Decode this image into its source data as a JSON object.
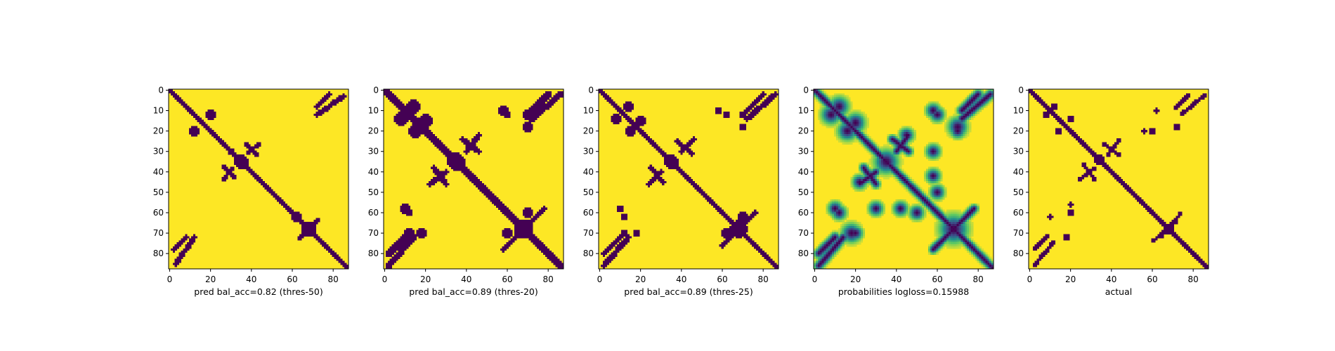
{
  "chart_data": [
    {
      "type": "heatmap",
      "xlabel": "pred bal_acc=0.82 (thres-50)",
      "ticks": [
        0,
        10,
        20,
        30,
        40,
        50,
        60,
        70,
        80
      ],
      "xticks": [
        0,
        20,
        40,
        60,
        80
      ],
      "size": 88,
      "colormap": "viridis",
      "variant": "binary",
      "diagonal_halfwidth": 2,
      "blobs": [
        {
          "i": 20,
          "j": 12,
          "r": 3
        },
        {
          "i": 35,
          "j": 35,
          "r": 4
        },
        {
          "i": 30,
          "j": 30,
          "r": 2
        },
        {
          "i": 68,
          "j": 68,
          "r": 4
        },
        {
          "i": 62,
          "j": 62,
          "r": 3
        }
      ],
      "bands": [
        {
          "i0": 2,
          "j0": 78,
          "i1": 8,
          "j1": 72,
          "w": 1.5
        },
        {
          "i0": 85,
          "j0": 3,
          "i1": 72,
          "j1": 12,
          "w": 1.5
        },
        {
          "i0": 38,
          "j0": 31,
          "i1": 44,
          "j1": 26,
          "w": 1.2
        },
        {
          "i0": 26,
          "j0": 37,
          "i1": 32,
          "j1": 43,
          "w": 1.2
        },
        {
          "i0": 63,
          "j0": 73,
          "i1": 72,
          "j1": 64,
          "w": 1.2
        }
      ]
    },
    {
      "type": "heatmap",
      "xlabel": "pred bal_acc=0.89 (thres-20)",
      "ticks": [
        0,
        10,
        20,
        30,
        40,
        50,
        60,
        70,
        80
      ],
      "xticks": [
        0,
        20,
        40,
        60,
        80
      ],
      "size": 88,
      "colormap": "viridis",
      "variant": "binary",
      "diagonal_halfwidth": 2.5,
      "blobs": [
        {
          "i": 14,
          "j": 8,
          "r": 4
        },
        {
          "i": 20,
          "j": 15,
          "r": 4
        },
        {
          "i": 35,
          "j": 35,
          "r": 5
        },
        {
          "i": 68,
          "j": 68,
          "r": 6
        },
        {
          "i": 60,
          "j": 70,
          "r": 3
        },
        {
          "i": 60,
          "j": 12,
          "r": 2
        },
        {
          "i": 70,
          "j": 12,
          "r": 3
        },
        {
          "i": 10,
          "j": 58,
          "r": 3
        },
        {
          "i": 18,
          "j": 70,
          "r": 3
        }
      ],
      "bands": [
        {
          "i0": 2,
          "j0": 80,
          "i1": 10,
          "j1": 72,
          "w": 1.8
        },
        {
          "i0": 86,
          "j0": 2,
          "i1": 72,
          "j1": 14,
          "w": 1.8
        },
        {
          "i0": 40,
          "j0": 30,
          "i1": 46,
          "j1": 22,
          "w": 1.5
        },
        {
          "i0": 24,
          "j0": 38,
          "i1": 30,
          "j1": 46,
          "w": 1.5
        },
        {
          "i0": 58,
          "j0": 78,
          "i1": 74,
          "j1": 62,
          "w": 1.5
        }
      ]
    },
    {
      "type": "heatmap",
      "xlabel": "pred bal_acc=0.89 (thres-25)",
      "ticks": [
        0,
        10,
        20,
        30,
        40,
        50,
        60,
        70,
        80
      ],
      "xticks": [
        0,
        20,
        40,
        60,
        80
      ],
      "size": 88,
      "colormap": "viridis",
      "variant": "binary",
      "diagonal_halfwidth": 2.3,
      "blobs": [
        {
          "i": 14,
          "j": 8,
          "r": 3
        },
        {
          "i": 20,
          "j": 15,
          "r": 3
        },
        {
          "i": 35,
          "j": 35,
          "r": 4
        },
        {
          "i": 68,
          "j": 68,
          "r": 5
        },
        {
          "i": 62,
          "j": 70,
          "r": 3
        },
        {
          "i": 62,
          "j": 12,
          "r": 2
        },
        {
          "i": 70,
          "j": 12,
          "r": 2
        },
        {
          "i": 10,
          "j": 58,
          "r": 2
        },
        {
          "i": 18,
          "j": 70,
          "r": 2
        }
      ],
      "bands": [
        {
          "i0": 2,
          "j0": 80,
          "i1": 10,
          "j1": 72,
          "w": 1.6
        },
        {
          "i0": 86,
          "j0": 2,
          "i1": 72,
          "j1": 14,
          "w": 1.6
        },
        {
          "i0": 40,
          "j0": 30,
          "i1": 46,
          "j1": 24,
          "w": 1.3
        },
        {
          "i0": 25,
          "j0": 38,
          "i1": 31,
          "j1": 45,
          "w": 1.3
        },
        {
          "i0": 60,
          "j0": 76,
          "i1": 73,
          "j1": 63,
          "w": 1.3
        }
      ]
    },
    {
      "type": "heatmap",
      "xlabel": "probabilities logloss=0.15988",
      "ticks": [
        0,
        10,
        20,
        30,
        40,
        50,
        60,
        70,
        80
      ],
      "xticks": [
        0,
        20,
        40,
        60,
        80
      ],
      "size": 88,
      "colormap": "viridis",
      "variant": "probability",
      "diagonal_halfwidth": 2.5,
      "blobs": [
        {
          "i": 12,
          "j": 8,
          "r": 4
        },
        {
          "i": 20,
          "j": 16,
          "r": 4
        },
        {
          "i": 35,
          "j": 35,
          "r": 5
        },
        {
          "i": 68,
          "j": 68,
          "r": 6
        },
        {
          "i": 60,
          "j": 12,
          "r": 3
        },
        {
          "i": 70,
          "j": 18,
          "r": 4
        },
        {
          "i": 10,
          "j": 58,
          "r": 3
        },
        {
          "i": 20,
          "j": 70,
          "r": 3
        },
        {
          "i": 30,
          "j": 58,
          "r": 3
        },
        {
          "i": 45,
          "j": 22,
          "r": 3
        },
        {
          "i": 58,
          "j": 42,
          "r": 3
        },
        {
          "i": 50,
          "j": 60,
          "r": 3
        }
      ],
      "bands": [
        {
          "i0": 2,
          "j0": 80,
          "i1": 10,
          "j1": 72,
          "w": 2
        },
        {
          "i0": 86,
          "j0": 2,
          "i1": 72,
          "j1": 14,
          "w": 2
        },
        {
          "i0": 40,
          "j0": 30,
          "i1": 46,
          "j1": 22,
          "w": 1.8
        },
        {
          "i0": 24,
          "j0": 38,
          "i1": 30,
          "j1": 46,
          "w": 1.8
        },
        {
          "i0": 58,
          "j0": 78,
          "i1": 74,
          "j1": 62,
          "w": 1.8
        }
      ]
    },
    {
      "type": "heatmap",
      "xlabel": "actual",
      "ticks": [
        0,
        10,
        20,
        30,
        40,
        50,
        60,
        70,
        80
      ],
      "xticks": [
        0,
        20,
        40,
        60,
        80
      ],
      "size": 88,
      "colormap": "viridis",
      "variant": "binary",
      "diagonal_halfwidth": 2,
      "blobs": [
        {
          "i": 12,
          "j": 8,
          "r": 2
        },
        {
          "i": 20,
          "j": 14,
          "r": 2
        },
        {
          "i": 34,
          "j": 34,
          "r": 3
        },
        {
          "i": 68,
          "j": 68,
          "r": 3
        },
        {
          "i": 60,
          "j": 20,
          "r": 2
        },
        {
          "i": 72,
          "j": 18,
          "r": 2
        },
        {
          "i": 10,
          "j": 62,
          "r": 1.5
        },
        {
          "i": 20,
          "j": 56,
          "r": 1.5
        }
      ],
      "bands": [
        {
          "i0": 2,
          "j0": 78,
          "i1": 9,
          "j1": 71,
          "w": 1.2
        },
        {
          "i0": 86,
          "j0": 2,
          "i1": 74,
          "j1": 12,
          "w": 1.2
        },
        {
          "i0": 38,
          "j0": 32,
          "i1": 44,
          "j1": 24,
          "w": 1.0
        },
        {
          "i0": 26,
          "j0": 36,
          "i1": 32,
          "j1": 44,
          "w": 1.0
        },
        {
          "i0": 60,
          "j0": 74,
          "i1": 72,
          "j1": 64,
          "w": 1.0
        }
      ]
    }
  ]
}
